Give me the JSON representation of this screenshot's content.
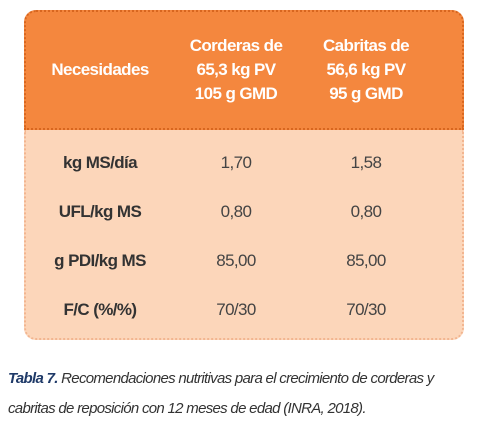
{
  "table": {
    "header": [
      "Necesidades",
      "Corderas de\n65,3 kg PV\n105 g GMD",
      "Cabritas de\n56,6 kg PV\n95 g GMD"
    ],
    "rows": [
      [
        "kg MS/día",
        "1,70",
        "1,58"
      ],
      [
        "UFL/kg MS",
        "0,80",
        "0,80"
      ],
      [
        "g PDI/kg MS",
        "85,00",
        "85,00"
      ],
      [
        "F/C (%/%)",
        "70/30",
        "70/30"
      ]
    ]
  },
  "caption": {
    "label": "Tabla 7.",
    "text": "Recomendaciones nutritivas para el crecimiento de corderas y cabritas de reposición con 12 meses de edad (INRA, 2018)."
  }
}
